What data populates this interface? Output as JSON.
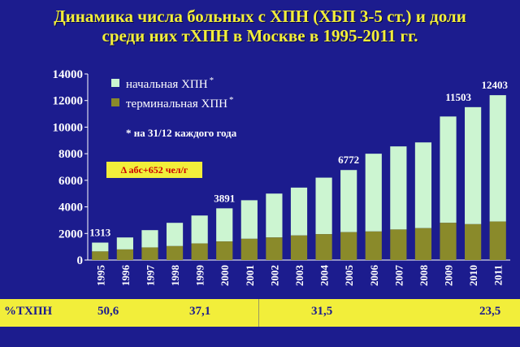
{
  "title": {
    "line1": "Динамика числа больных с ХПН (ХБП 3-5 ст.) и доли",
    "line2": "среди них тХПН в Москве в 1995-2011 гг."
  },
  "legend": {
    "initial": "начальная ХПН",
    "terminal": "терминальная ХПН",
    "star": "*"
  },
  "note": "* на 31/12 каждого года",
  "delta_badge": "Δ абс+652 чел/г",
  "footer": {
    "label": "%ТХПН",
    "values": [
      "50,6",
      "37,1",
      "31,5",
      "23,5"
    ]
  },
  "colors": {
    "background": "#1c1c8e",
    "title": "#f2ee3a",
    "initial": "#ccf5d1",
    "terminal": "#8a8a2a",
    "footer": "#f2ee3a",
    "badge_text": "#cc0000"
  },
  "chart_data": {
    "type": "bar",
    "stacked": true,
    "categories": [
      "1995",
      "1996",
      "1997",
      "1998",
      "1999",
      "2000",
      "2001",
      "2002",
      "2003",
      "2004",
      "2005",
      "2006",
      "2007",
      "2008",
      "2009",
      "2010",
      "2011"
    ],
    "series": [
      {
        "name": "терминальная ХПН",
        "values": [
          650,
          800,
          950,
          1050,
          1250,
          1400,
          1600,
          1700,
          1850,
          1950,
          2100,
          2150,
          2300,
          2400,
          2800,
          2700,
          2900
        ]
      },
      {
        "name": "начальная ХПН",
        "values": [
          663,
          900,
          1300,
          1750,
          2100,
          2491,
          2900,
          3300,
          3600,
          4250,
          4672,
          5850,
          6250,
          6450,
          8000,
          8803,
          9503
        ]
      }
    ],
    "totals": [
      1313,
      1700,
      2250,
      2800,
      3350,
      3891,
      4500,
      5000,
      5450,
      6200,
      6772,
      8000,
      8550,
      8850,
      10800,
      11503,
      12403
    ],
    "data_labels": [
      {
        "index": 0,
        "text": "1313"
      },
      {
        "index": 5,
        "text": "3891"
      },
      {
        "index": 10,
        "text": "6772"
      },
      {
        "index": 15,
        "text": "11503"
      },
      {
        "index": 16,
        "text": "12403"
      }
    ],
    "yticks": [
      0,
      2000,
      4000,
      6000,
      8000,
      10000,
      12000,
      14000
    ],
    "ylim": [
      0,
      14000
    ],
    "grid": false,
    "legend_position": "top-left"
  }
}
